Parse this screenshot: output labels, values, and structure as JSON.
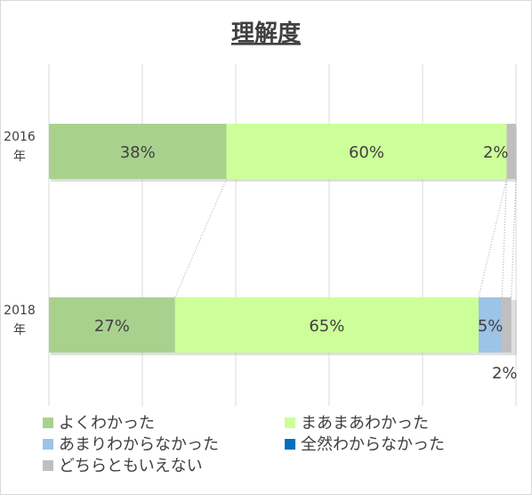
{
  "chart_data": {
    "type": "bar",
    "orientation": "horizontal",
    "stacked": "percent",
    "title": "理解度",
    "categories": [
      "2016\n年",
      "2018\n年"
    ],
    "series": [
      {
        "name": "よくわかった",
        "values": [
          38,
          27
        ],
        "color": "#a9d18e",
        "labels": [
          "38%",
          "27%"
        ]
      },
      {
        "name": "まあまあわかった",
        "values": [
          60,
          65
        ],
        "color": "#ccff99",
        "labels": [
          "60%",
          "65%"
        ]
      },
      {
        "name": "あまりわからなかった",
        "values": [
          0,
          5
        ],
        "color": "#9dc3e6",
        "labels": [
          "",
          "5%"
        ]
      },
      {
        "name": "全然わからなかった",
        "values": [
          0,
          0
        ],
        "color": "#0070c0",
        "labels": [
          "",
          ""
        ]
      },
      {
        "name": "どちらともいえない",
        "values": [
          2,
          2
        ],
        "color": "#bfbfbf",
        "labels": [
          "2%",
          "2%"
        ]
      }
    ],
    "xlim": [
      0,
      100
    ],
    "grid": true,
    "series_lines": true,
    "legend_position": "bottom"
  }
}
